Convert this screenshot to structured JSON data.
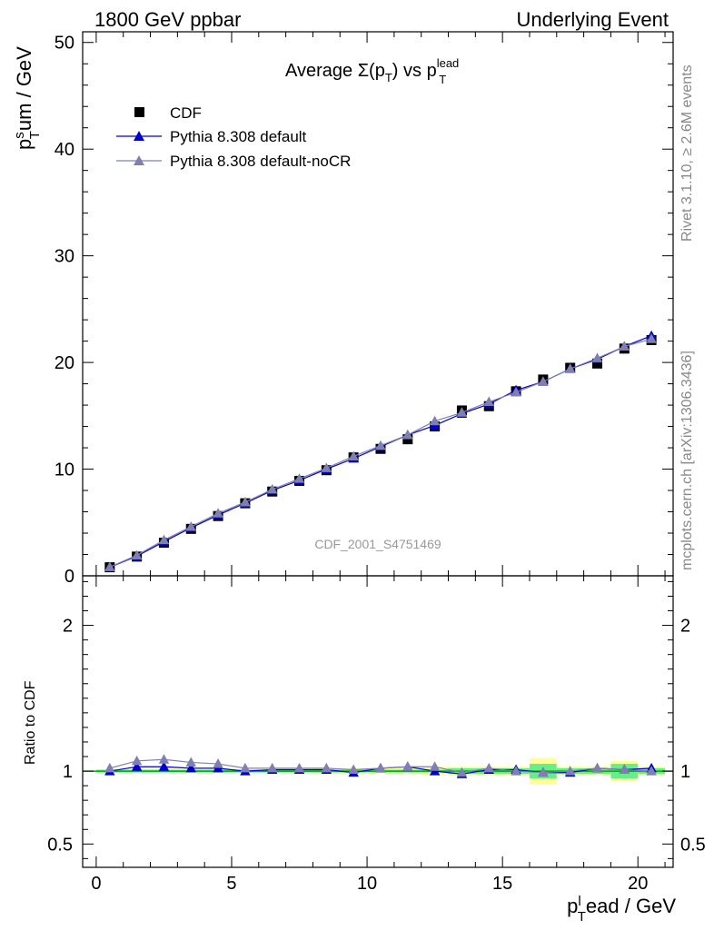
{
  "header": {
    "left": "1800 GeV ppbar",
    "right": "Underlying Event"
  },
  "side": {
    "rivet": "Rivet 3.1.10, ≥ 2.6M events",
    "mcplots": "mcplots.cern.ch [arXiv:1306.3436]"
  },
  "chart_data": {
    "type": "line",
    "title_main": "Average Σ(p",
    "title_sub_T": "T",
    "title_mid": ") vs p",
    "title_sup": "lead",
    "title_sub_T2": "T",
    "watermark": "CDF_2001_S4751469",
    "ylabel_base": "p",
    "ylabel_sup": "s",
    "ylabel_sub": "T",
    "ylabel_rest": "um / GeV",
    "xlabel_base": "p",
    "xlabel_sup": "l",
    "xlabel_sub": "T",
    "xlabel_rest": "ead / GeV",
    "ratio_ylabel": "Ratio to CDF",
    "xlim": [
      -0.5,
      21.3
    ],
    "ylim": [
      0,
      51
    ],
    "ratio_ylim": [
      0.34,
      2.34
    ],
    "x_ticks": [
      "0",
      "5",
      "10",
      "15",
      "20"
    ],
    "y_ticks": [
      "0",
      "10",
      "20",
      "30",
      "40",
      "50"
    ],
    "ratio_ticks": [
      "0.5",
      "1",
      "2"
    ],
    "legend_position": "top-left",
    "colors": {
      "data": "#000000",
      "default": "#0000cc",
      "noCR": "#7f7fb2",
      "band_inner": "#66ee88",
      "band_outer": "#ffff99",
      "ratio_line": "#00aa00"
    },
    "x": [
      0.5,
      1.5,
      2.5,
      3.5,
      4.5,
      5.5,
      6.5,
      7.5,
      8.5,
      9.5,
      10.5,
      11.5,
      12.5,
      13.5,
      14.5,
      15.5,
      16.5,
      17.5,
      18.5,
      19.5,
      20.5
    ],
    "series": [
      {
        "name": "CDF",
        "marker": "square",
        "values": [
          0.8,
          1.8,
          3.1,
          4.4,
          5.6,
          6.8,
          7.9,
          8.9,
          9.9,
          11.1,
          11.9,
          12.8,
          14.0,
          15.5,
          15.9,
          17.3,
          18.4,
          19.5,
          19.9,
          21.3,
          22.1
        ]
      },
      {
        "name": "Pythia 8.308 default",
        "marker": "triangle",
        "values": [
          0.8,
          1.85,
          3.2,
          4.5,
          5.7,
          6.8,
          8.0,
          8.95,
          10.0,
          11.0,
          12.1,
          13.2,
          14.1,
          15.2,
          16.1,
          17.4,
          18.2,
          19.4,
          20.3,
          21.5,
          22.5
        ]
      },
      {
        "name": "Pythia 8.308 default-noCR",
        "marker": "triangle",
        "values": [
          0.82,
          1.92,
          3.35,
          4.6,
          5.85,
          6.9,
          8.1,
          9.1,
          10.1,
          11.2,
          12.2,
          13.2,
          14.5,
          15.3,
          16.3,
          17.2,
          18.2,
          19.4,
          20.4,
          21.5,
          22.2
        ]
      }
    ],
    "ratio_default": [
      1.0,
      1.03,
      1.03,
      1.02,
      1.02,
      1.0,
      1.01,
      1.01,
      1.01,
      0.99,
      1.02,
      1.03,
      1.0,
      0.98,
      1.01,
      1.01,
      0.99,
      0.99,
      1.02,
      1.01,
      1.02
    ],
    "ratio_noCR": [
      1.02,
      1.07,
      1.08,
      1.06,
      1.05,
      1.02,
      1.02,
      1.02,
      1.02,
      1.01,
      1.02,
      1.03,
      1.03,
      0.99,
      1.02,
      1.0,
      0.99,
      1.0,
      1.02,
      1.01,
      1.0
    ],
    "band_inner": [
      0.01,
      0.01,
      0.01,
      0.01,
      0.01,
      0.01,
      0.01,
      0.01,
      0.01,
      0.01,
      0.01,
      0.01,
      0.01,
      0.02,
      0.02,
      0.02,
      0.05,
      0.02,
      0.02,
      0.05,
      0.02
    ],
    "band_outer": [
      0.01,
      0.01,
      0.01,
      0.01,
      0.01,
      0.01,
      0.01,
      0.01,
      0.02,
      0.02,
      0.02,
      0.02,
      0.03,
      0.03,
      0.03,
      0.03,
      0.09,
      0.03,
      0.03,
      0.07,
      0.03
    ]
  }
}
